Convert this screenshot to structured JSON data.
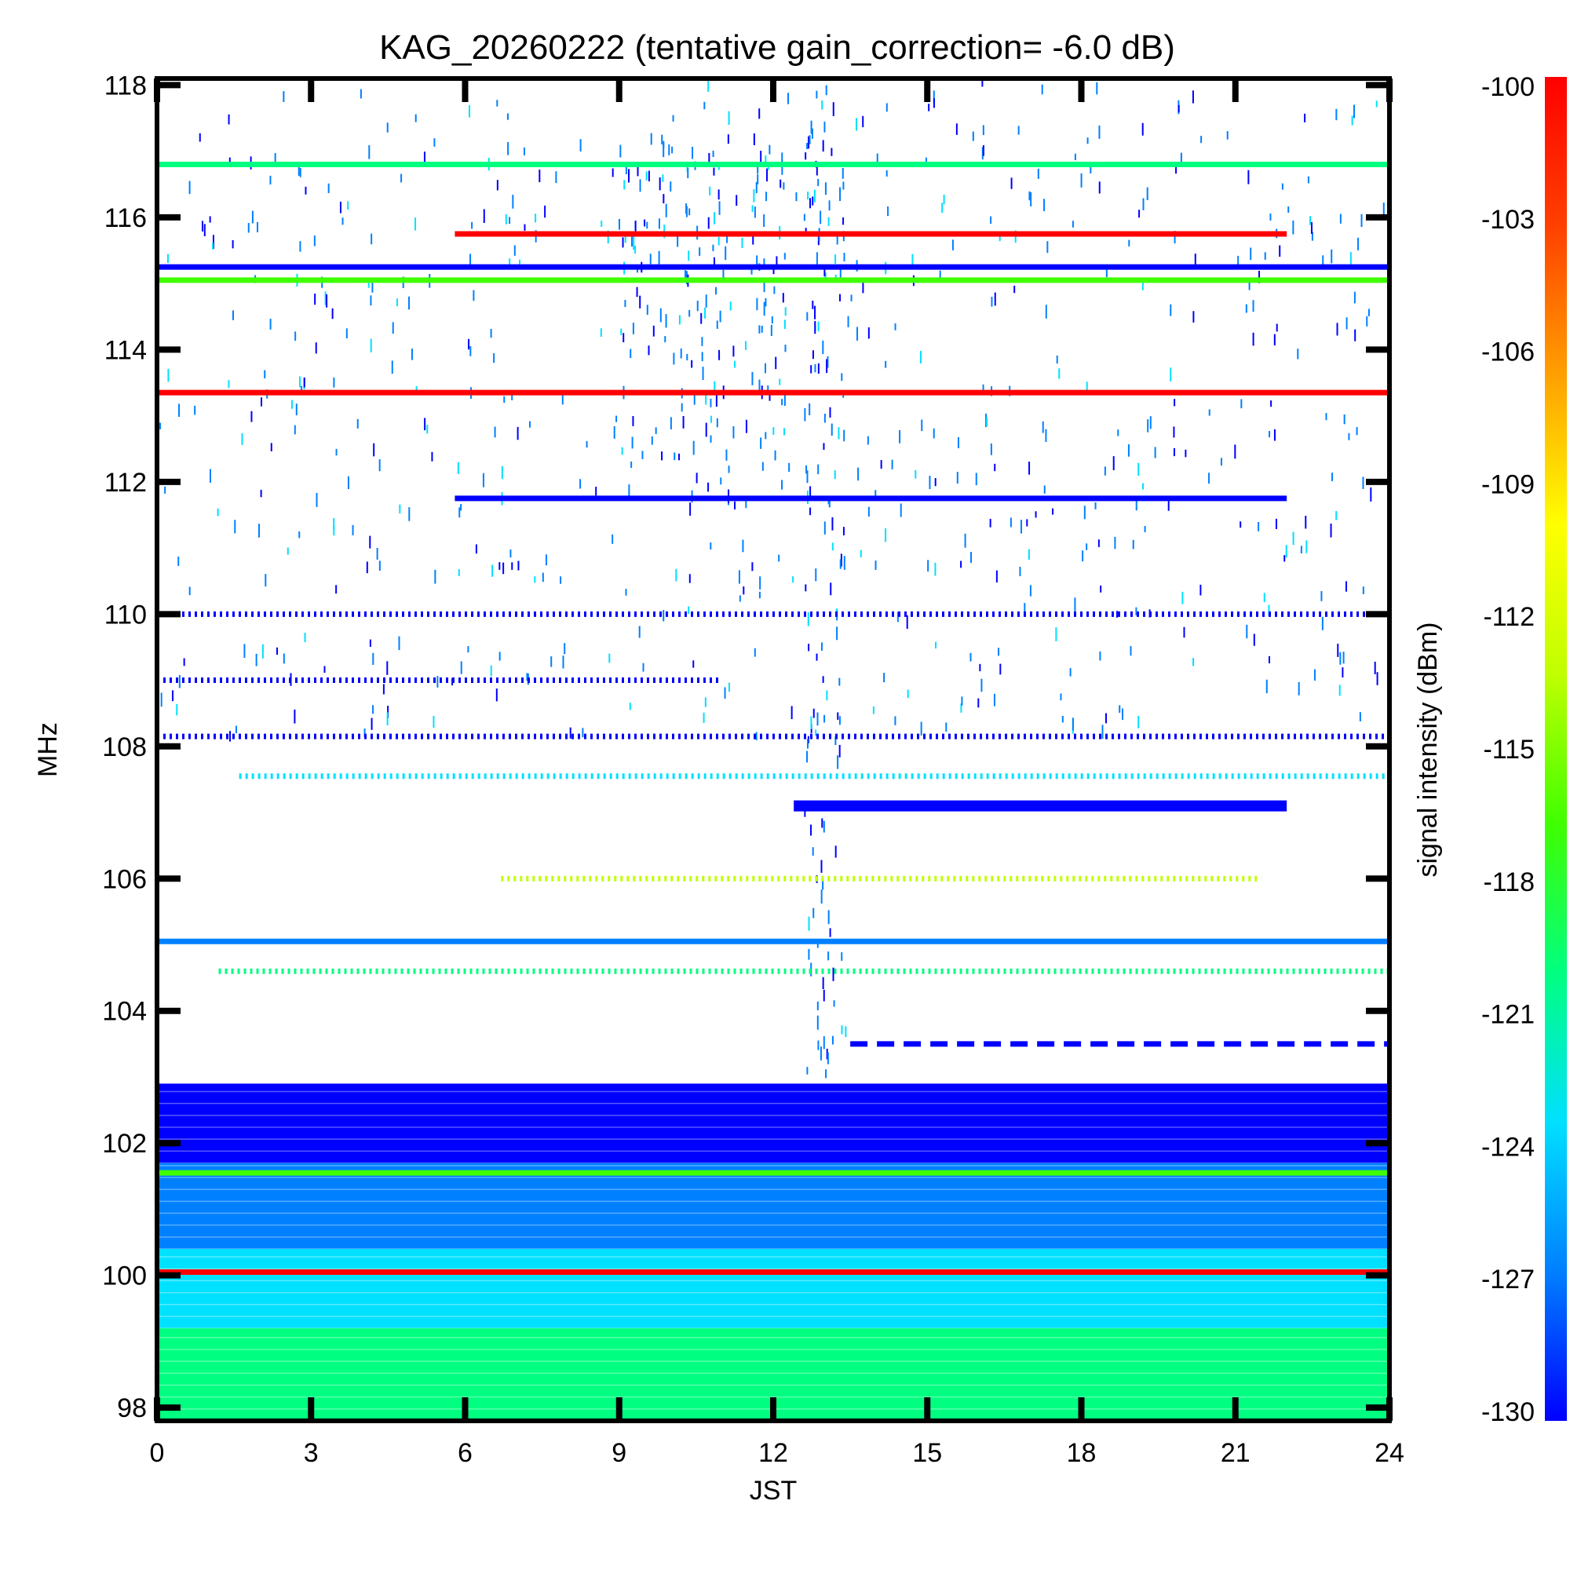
{
  "chart_data": {
    "type": "heatmap",
    "title": "KAG_20260222 (tentative gain_correction= -6.0 dB)",
    "xlabel": "JST",
    "ylabel": "MHz",
    "xlim": [
      0,
      24
    ],
    "ylim": [
      97.8,
      118.1
    ],
    "x_ticks": [
      0,
      3,
      6,
      9,
      12,
      15,
      18,
      21,
      24
    ],
    "y_ticks": [
      98,
      100,
      102,
      104,
      106,
      108,
      110,
      112,
      114,
      116,
      118
    ],
    "colorbar": {
      "label": "signal intensity (dBm)",
      "range": [
        -130,
        -100
      ],
      "ticks": [
        -100,
        -103,
        -106,
        -109,
        -112,
        -115,
        -118,
        -121,
        -124,
        -127,
        -130
      ],
      "colors": [
        "#0000ff",
        "#0080ff",
        "#00e0ff",
        "#00ff80",
        "#40ff00",
        "#c0ff00",
        "#ffff00",
        "#ffa000",
        "#ff4000",
        "#ff0000"
      ]
    },
    "bands": [
      {
        "freq": 116.8,
        "start": 0,
        "end": 24,
        "dbm": -119,
        "pattern": "solid"
      },
      {
        "freq": 115.75,
        "start": 5.8,
        "end": 22,
        "dbm": -101,
        "pattern": "solid"
      },
      {
        "freq": 115.25,
        "start": 0,
        "end": 24,
        "dbm": -129,
        "pattern": "solid"
      },
      {
        "freq": 115.05,
        "start": 0,
        "end": 24,
        "dbm": -118,
        "pattern": "solid"
      },
      {
        "freq": 113.35,
        "start": 0,
        "end": 24,
        "dbm": -100,
        "pattern": "solid"
      },
      {
        "freq": 111.75,
        "start": 5.8,
        "end": 22,
        "dbm": -129,
        "pattern": "solid"
      },
      {
        "freq": 110.0,
        "start": 0,
        "end": 24,
        "dbm": -129,
        "pattern": "dotted"
      },
      {
        "freq": 109.0,
        "start": 0,
        "end": 11,
        "dbm": -129,
        "pattern": "dotted"
      },
      {
        "freq": 108.15,
        "start": 0,
        "end": 24,
        "dbm": -129,
        "pattern": "dotted"
      },
      {
        "freq": 107.55,
        "start": 1.6,
        "end": 24,
        "dbm": -122,
        "pattern": "dotted"
      },
      {
        "freq": 107.1,
        "start": 12.4,
        "end": 22,
        "dbm": -129,
        "pattern": "solid"
      },
      {
        "freq": 106.0,
        "start": 6.7,
        "end": 21.5,
        "dbm": -113,
        "pattern": "dotted"
      },
      {
        "freq": 105.05,
        "start": 0,
        "end": 24,
        "dbm": -127,
        "pattern": "solid"
      },
      {
        "freq": 104.6,
        "start": 1.2,
        "end": 24,
        "dbm": -121,
        "pattern": "dotted"
      },
      {
        "freq": 103.5,
        "start": 13.5,
        "end": 24,
        "dbm": -129,
        "pattern": "dashed"
      },
      {
        "freq": 101.55,
        "start": 0,
        "end": 24,
        "dbm": -118,
        "pattern": "solid"
      },
      {
        "freq": 100.05,
        "start": 0,
        "end": 24,
        "dbm": -100,
        "pattern": "solid"
      }
    ],
    "noise_floor": [
      {
        "from": 102.9,
        "to": 101.7,
        "dbm": -129
      },
      {
        "from": 101.7,
        "to": 100.4,
        "dbm": -126
      },
      {
        "from": 100.4,
        "to": 99.2,
        "dbm": -123
      },
      {
        "from": 99.2,
        "to": 97.8,
        "dbm": -120
      }
    ],
    "noise_clusters": [
      {
        "t_start": 0,
        "t_end": 24,
        "f_low": 108.2,
        "f_high": 118.1,
        "density": 0.18
      },
      {
        "t_start": 9,
        "t_end": 12.3,
        "f_low": 112,
        "f_high": 117.3,
        "density": 0.6
      },
      {
        "t_start": 12.6,
        "t_end": 13.4,
        "f_low": 102.9,
        "f_high": 118.1,
        "density": 0.7
      }
    ]
  }
}
